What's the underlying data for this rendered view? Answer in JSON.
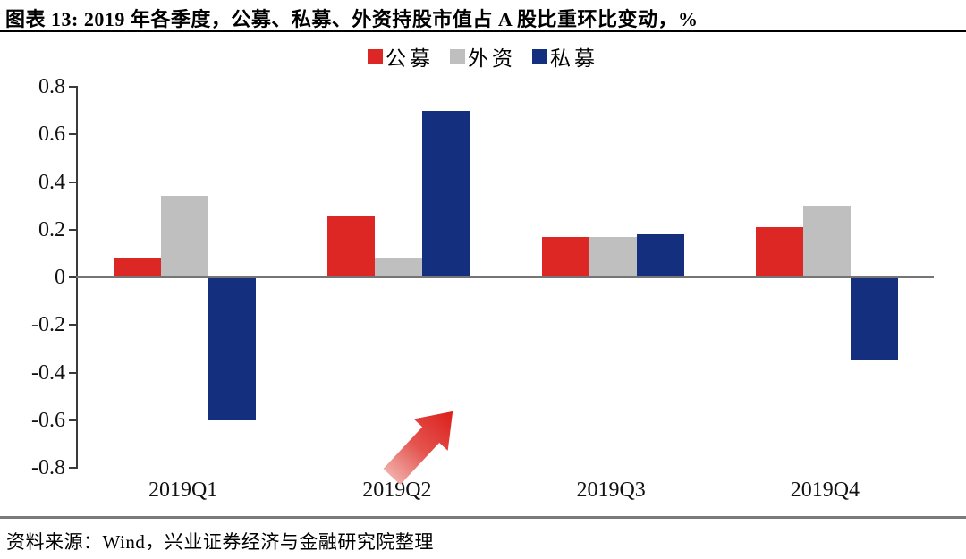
{
  "chart_data": {
    "type": "bar",
    "title": "图表 13: 2019 年各季度，公募、私募、外资持股市值占 A 股比重环比变动，%",
    "unit": "%",
    "categories": [
      "2019Q1",
      "2019Q2",
      "2019Q3",
      "2019Q4"
    ],
    "series": [
      {
        "name": "公募",
        "key": "public-funds",
        "color": "#DC2724",
        "values": [
          0.08,
          0.26,
          0.17,
          0.21
        ]
      },
      {
        "name": "外资",
        "key": "foreign-capital",
        "color": "#BFBFBF",
        "values": [
          0.34,
          0.08,
          0.17,
          0.3
        ]
      },
      {
        "name": "私募",
        "key": "private-funds",
        "color": "#142F7E",
        "values": [
          -0.6,
          0.7,
          0.18,
          -0.35
        ]
      }
    ],
    "ylim": [
      -0.8,
      0.8
    ],
    "yticks": [
      0.8,
      0.6,
      0.4,
      0.2,
      0,
      -0.2,
      -0.4,
      -0.6,
      -0.8
    ],
    "grid": false,
    "legend_position": "top-center",
    "annotation": {
      "type": "arrow",
      "direction": "up-right",
      "color_tail": "#F1ACA7",
      "color_head": "#DC1F1B",
      "location": "below zero axis under 2019Q2 group"
    }
  },
  "footer": {
    "source": "资料来源：Wind，兴业证券经济与金融研究院整理"
  }
}
